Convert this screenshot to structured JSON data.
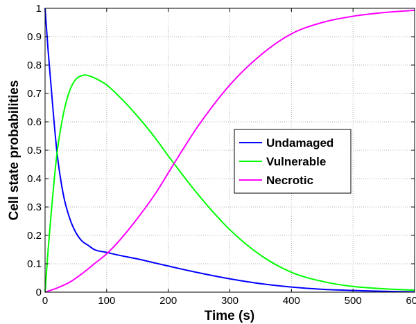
{
  "chart_data": {
    "type": "line",
    "title": "",
    "xlabel": "Time (s)",
    "ylabel": "Cell state probabilities",
    "xlim": [
      0,
      600
    ],
    "ylim": [
      0,
      1
    ],
    "xticks": [
      0,
      100,
      200,
      300,
      400,
      500,
      600
    ],
    "yticks": [
      0,
      0.1,
      0.2,
      0.3,
      0.4,
      0.5,
      0.6,
      0.7,
      0.8,
      0.9,
      1
    ],
    "xtick_labels": [
      "0",
      "100",
      "200",
      "300",
      "400",
      "500",
      "600"
    ],
    "ytick_labels": [
      "0",
      "0.1",
      "0.2",
      "0.3",
      "0.4",
      "0.5",
      "0.6",
      "0.7",
      "0.8",
      "0.9",
      "1"
    ],
    "grid": true,
    "legend_position": "center-right",
    "series": [
      {
        "name": "Undamaged",
        "color": "#0000ff",
        "x": [
          0,
          5,
          10,
          15,
          20,
          30,
          40,
          50,
          60,
          70,
          80,
          100,
          120,
          150,
          180,
          200,
          250,
          300,
          350,
          400,
          450,
          500,
          550,
          600
        ],
        "y": [
          1.0,
          0.85,
          0.72,
          0.59,
          0.48,
          0.34,
          0.26,
          0.21,
          0.18,
          0.165,
          0.15,
          0.14,
          0.13,
          0.117,
          0.102,
          0.092,
          0.068,
          0.047,
          0.03,
          0.018,
          0.01,
          0.006,
          0.003,
          0.001
        ]
      },
      {
        "name": "Vulnerable",
        "color": "#00ff00",
        "x": [
          0,
          5,
          10,
          15,
          20,
          30,
          40,
          50,
          60,
          65,
          70,
          80,
          100,
          120,
          150,
          180,
          200,
          250,
          300,
          350,
          400,
          450,
          500,
          550,
          600
        ],
        "y": [
          0.0,
          0.15,
          0.28,
          0.4,
          0.5,
          0.63,
          0.71,
          0.75,
          0.763,
          0.765,
          0.763,
          0.755,
          0.73,
          0.69,
          0.62,
          0.54,
          0.48,
          0.34,
          0.22,
          0.13,
          0.07,
          0.038,
          0.02,
          0.012,
          0.007
        ]
      },
      {
        "name": "Necrotic",
        "color": "#ff00ff",
        "x": [
          0,
          20,
          40,
          60,
          80,
          100,
          120,
          150,
          180,
          200,
          220,
          250,
          300,
          350,
          400,
          450,
          500,
          550,
          600
        ],
        "y": [
          0.0,
          0.015,
          0.035,
          0.065,
          0.1,
          0.135,
          0.18,
          0.26,
          0.35,
          0.42,
          0.49,
          0.59,
          0.73,
          0.835,
          0.91,
          0.95,
          0.972,
          0.985,
          0.993
        ]
      }
    ]
  }
}
